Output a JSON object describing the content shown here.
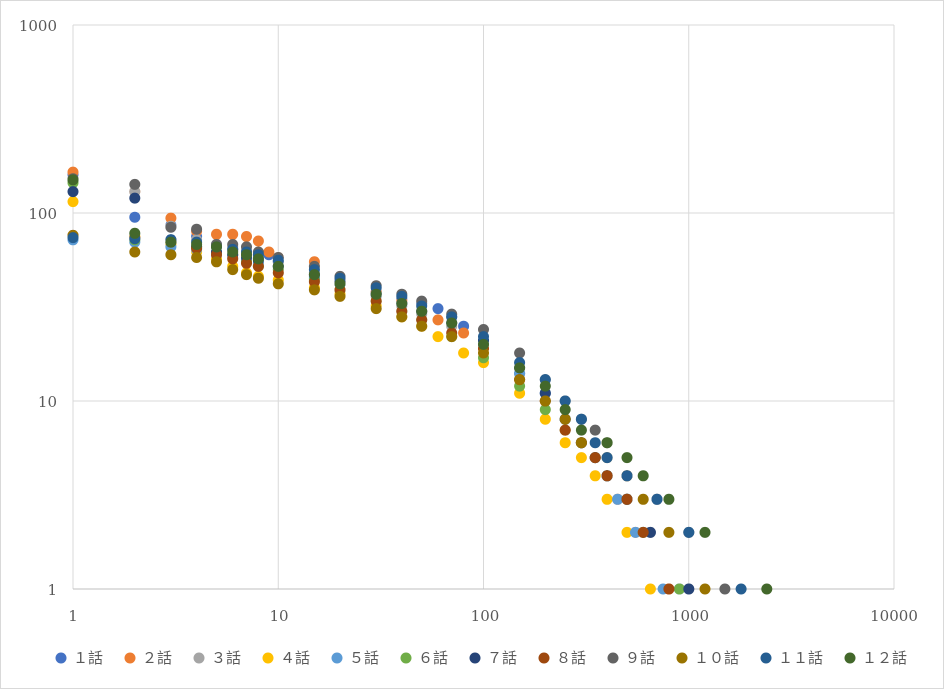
{
  "chart_data": {
    "type": "scatter",
    "title": "",
    "xlabel": "",
    "ylabel": "",
    "xscale": "log",
    "yscale": "log",
    "xlim": [
      1,
      10000
    ],
    "ylim": [
      1,
      1000
    ],
    "x_tick_labels": [
      "1",
      "10",
      "100",
      "1000",
      "10000"
    ],
    "y_tick_labels": [
      "1",
      "10",
      "100",
      "1000"
    ],
    "grid": true,
    "legend_position": "bottom",
    "series": [
      {
        "name": "１話",
        "color": "#4472c4",
        "points": [
          [
            1,
            160
          ],
          [
            2,
            95
          ],
          [
            3,
            86
          ],
          [
            4,
            75
          ],
          [
            5,
            68
          ],
          [
            6,
            64
          ],
          [
            7,
            60
          ],
          [
            8,
            58
          ],
          [
            9,
            60
          ],
          [
            10,
            55
          ],
          [
            15,
            45
          ],
          [
            20,
            42
          ],
          [
            30,
            38
          ],
          [
            40,
            35
          ],
          [
            50,
            33
          ],
          [
            60,
            31
          ],
          [
            70,
            28
          ],
          [
            80,
            25
          ],
          [
            100,
            20
          ],
          [
            150,
            14
          ],
          [
            200,
            11
          ],
          [
            250,
            8
          ],
          [
            300,
            6
          ],
          [
            350,
            5
          ],
          [
            400,
            4
          ],
          [
            500,
            3
          ],
          [
            600,
            2
          ],
          [
            900,
            1
          ]
        ]
      },
      {
        "name": "２話",
        "color": "#ed7d31",
        "points": [
          [
            1,
            165
          ],
          [
            2,
            130
          ],
          [
            3,
            94
          ],
          [
            4,
            80
          ],
          [
            5,
            77
          ],
          [
            6,
            77
          ],
          [
            7,
            75
          ],
          [
            8,
            71
          ],
          [
            9,
            62
          ],
          [
            10,
            58
          ],
          [
            15,
            55
          ],
          [
            20,
            45
          ],
          [
            30,
            38
          ],
          [
            40,
            34
          ],
          [
            50,
            30
          ],
          [
            60,
            27
          ],
          [
            80,
            23
          ],
          [
            100,
            19
          ],
          [
            150,
            13
          ],
          [
            200,
            10
          ],
          [
            250,
            7
          ],
          [
            300,
            6
          ],
          [
            350,
            5
          ],
          [
            450,
            3
          ],
          [
            550,
            2
          ],
          [
            800,
            1
          ]
        ]
      },
      {
        "name": "３話",
        "color": "#a5a5a5",
        "points": [
          [
            1,
            150
          ],
          [
            2,
            130
          ],
          [
            3,
            85
          ],
          [
            4,
            72
          ],
          [
            5,
            68
          ],
          [
            6,
            66
          ],
          [
            7,
            63
          ],
          [
            8,
            60
          ],
          [
            10,
            55
          ],
          [
            15,
            48
          ],
          [
            20,
            42
          ],
          [
            30,
            36
          ],
          [
            40,
            32
          ],
          [
            50,
            29
          ],
          [
            70,
            25
          ],
          [
            100,
            20
          ],
          [
            150,
            14
          ],
          [
            200,
            10
          ],
          [
            250,
            8
          ],
          [
            300,
            6
          ],
          [
            350,
            5
          ],
          [
            400,
            4
          ],
          [
            500,
            3
          ],
          [
            650,
            2
          ],
          [
            1000,
            1
          ]
        ]
      },
      {
        "name": "４話",
        "color": "#ffc000",
        "points": [
          [
            1,
            115
          ],
          [
            2,
            75
          ],
          [
            3,
            68
          ],
          [
            4,
            62
          ],
          [
            5,
            57
          ],
          [
            6,
            52
          ],
          [
            7,
            48
          ],
          [
            8,
            46
          ],
          [
            10,
            44
          ],
          [
            15,
            40
          ],
          [
            20,
            37
          ],
          [
            30,
            32
          ],
          [
            40,
            28
          ],
          [
            50,
            25
          ],
          [
            60,
            22
          ],
          [
            80,
            18
          ],
          [
            100,
            16
          ],
          [
            150,
            11
          ],
          [
            200,
            8
          ],
          [
            250,
            6
          ],
          [
            300,
            5
          ],
          [
            350,
            4
          ],
          [
            400,
            3
          ],
          [
            500,
            2
          ],
          [
            650,
            1
          ]
        ]
      },
      {
        "name": "５話",
        "color": "#5b9bd5",
        "points": [
          [
            1,
            72
          ],
          [
            2,
            70
          ],
          [
            3,
            66
          ],
          [
            4,
            64
          ],
          [
            5,
            60
          ],
          [
            6,
            58
          ],
          [
            7,
            56
          ],
          [
            8,
            54
          ],
          [
            10,
            52
          ],
          [
            15,
            46
          ],
          [
            20,
            42
          ],
          [
            30,
            37
          ],
          [
            40,
            33
          ],
          [
            50,
            30
          ],
          [
            70,
            26
          ],
          [
            100,
            21
          ],
          [
            150,
            14
          ],
          [
            200,
            11
          ],
          [
            250,
            8
          ],
          [
            300,
            6
          ],
          [
            350,
            5
          ],
          [
            400,
            4
          ],
          [
            450,
            3
          ],
          [
            550,
            2
          ],
          [
            750,
            1
          ]
        ]
      },
      {
        "name": "６話",
        "color": "#70ad47",
        "points": [
          [
            1,
            145
          ],
          [
            2,
            72
          ],
          [
            3,
            70
          ],
          [
            4,
            66
          ],
          [
            5,
            62
          ],
          [
            6,
            60
          ],
          [
            7,
            55
          ],
          [
            8,
            52
          ],
          [
            10,
            50
          ],
          [
            15,
            44
          ],
          [
            20,
            39
          ],
          [
            30,
            34
          ],
          [
            40,
            30
          ],
          [
            50,
            27
          ],
          [
            70,
            22
          ],
          [
            100,
            17
          ],
          [
            150,
            12
          ],
          [
            200,
            9
          ],
          [
            250,
            7
          ],
          [
            300,
            6
          ],
          [
            350,
            5
          ],
          [
            400,
            4
          ],
          [
            500,
            3
          ],
          [
            600,
            2
          ],
          [
            900,
            1
          ]
        ]
      },
      {
        "name": "７話",
        "color": "#264478",
        "points": [
          [
            1,
            130
          ],
          [
            2,
            120
          ],
          [
            3,
            72
          ],
          [
            4,
            66
          ],
          [
            5,
            62
          ],
          [
            6,
            60
          ],
          [
            7,
            58
          ],
          [
            8,
            56
          ],
          [
            10,
            52
          ],
          [
            15,
            47
          ],
          [
            20,
            43
          ],
          [
            30,
            37
          ],
          [
            40,
            33
          ],
          [
            50,
            30
          ],
          [
            70,
            26
          ],
          [
            100,
            21
          ],
          [
            150,
            15
          ],
          [
            200,
            11
          ],
          [
            250,
            8
          ],
          [
            300,
            6
          ],
          [
            350,
            5
          ],
          [
            400,
            4
          ],
          [
            500,
            3
          ],
          [
            650,
            2
          ],
          [
            1000,
            1
          ]
        ]
      },
      {
        "name": "８話",
        "color": "#9e480e",
        "points": [
          [
            1,
            76
          ],
          [
            2,
            74
          ],
          [
            3,
            70
          ],
          [
            4,
            65
          ],
          [
            5,
            60
          ],
          [
            6,
            57
          ],
          [
            7,
            54
          ],
          [
            8,
            52
          ],
          [
            10,
            48
          ],
          [
            15,
            43
          ],
          [
            20,
            39
          ],
          [
            30,
            34
          ],
          [
            40,
            30
          ],
          [
            50,
            27
          ],
          [
            70,
            23
          ],
          [
            100,
            19
          ],
          [
            150,
            13
          ],
          [
            200,
            10
          ],
          [
            250,
            7
          ],
          [
            300,
            6
          ],
          [
            350,
            5
          ],
          [
            400,
            4
          ],
          [
            500,
            3
          ],
          [
            600,
            2
          ],
          [
            800,
            1
          ]
        ]
      },
      {
        "name": "９話",
        "color": "#636363",
        "points": [
          [
            1,
            152
          ],
          [
            2,
            142
          ],
          [
            3,
            84
          ],
          [
            4,
            82
          ],
          [
            5,
            68
          ],
          [
            6,
            68
          ],
          [
            7,
            66
          ],
          [
            8,
            62
          ],
          [
            10,
            58
          ],
          [
            15,
            52
          ],
          [
            20,
            46
          ],
          [
            30,
            41
          ],
          [
            40,
            37
          ],
          [
            50,
            34
          ],
          [
            70,
            29
          ],
          [
            100,
            24
          ],
          [
            150,
            18
          ],
          [
            200,
            13
          ],
          [
            250,
            10
          ],
          [
            300,
            8
          ],
          [
            350,
            7
          ],
          [
            400,
            6
          ],
          [
            500,
            4
          ],
          [
            700,
            3
          ],
          [
            1000,
            2
          ],
          [
            1500,
            1
          ]
        ]
      },
      {
        "name": "１０話",
        "color": "#997300",
        "points": [
          [
            1,
            76
          ],
          [
            2,
            62
          ],
          [
            3,
            60
          ],
          [
            4,
            58
          ],
          [
            5,
            55
          ],
          [
            6,
            50
          ],
          [
            7,
            47
          ],
          [
            8,
            45
          ],
          [
            10,
            42
          ],
          [
            15,
            39
          ],
          [
            20,
            36
          ],
          [
            30,
            31
          ],
          [
            40,
            28
          ],
          [
            50,
            25
          ],
          [
            70,
            22
          ],
          [
            100,
            18
          ],
          [
            150,
            13
          ],
          [
            200,
            10
          ],
          [
            250,
            8
          ],
          [
            300,
            6
          ],
          [
            400,
            5
          ],
          [
            500,
            4
          ],
          [
            600,
            3
          ],
          [
            800,
            2
          ],
          [
            1200,
            1
          ]
        ]
      },
      {
        "name": "１１話",
        "color": "#255e91",
        "points": [
          [
            1,
            74
          ],
          [
            2,
            73
          ],
          [
            3,
            72
          ],
          [
            4,
            70
          ],
          [
            5,
            66
          ],
          [
            6,
            64
          ],
          [
            7,
            62
          ],
          [
            8,
            60
          ],
          [
            10,
            56
          ],
          [
            15,
            50
          ],
          [
            20,
            45
          ],
          [
            30,
            40
          ],
          [
            40,
            36
          ],
          [
            50,
            32
          ],
          [
            70,
            28
          ],
          [
            100,
            22
          ],
          [
            150,
            16
          ],
          [
            200,
            13
          ],
          [
            250,
            10
          ],
          [
            300,
            8
          ],
          [
            350,
            6
          ],
          [
            400,
            5
          ],
          [
            500,
            4
          ],
          [
            700,
            3
          ],
          [
            1000,
            2
          ],
          [
            1800,
            1
          ]
        ]
      },
      {
        "name": "１２話",
        "color": "#43682b",
        "points": [
          [
            1,
            150
          ],
          [
            2,
            78
          ],
          [
            3,
            70
          ],
          [
            4,
            68
          ],
          [
            5,
            66
          ],
          [
            6,
            62
          ],
          [
            7,
            60
          ],
          [
            8,
            57
          ],
          [
            10,
            52
          ],
          [
            15,
            47
          ],
          [
            20,
            42
          ],
          [
            30,
            37
          ],
          [
            40,
            33
          ],
          [
            50,
            30
          ],
          [
            70,
            26
          ],
          [
            100,
            20
          ],
          [
            150,
            15
          ],
          [
            200,
            12
          ],
          [
            250,
            9
          ],
          [
            300,
            7
          ],
          [
            400,
            6
          ],
          [
            500,
            5
          ],
          [
            600,
            4
          ],
          [
            800,
            3
          ],
          [
            1200,
            2
          ],
          [
            2400,
            1
          ]
        ]
      }
    ]
  }
}
